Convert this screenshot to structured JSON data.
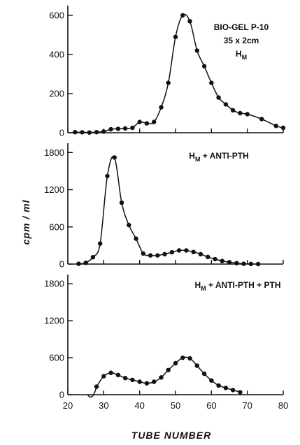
{
  "chart_data": {
    "type": "line",
    "xlabel": "TUBE NUMBER",
    "ylabel": "cpm / ml",
    "xlim": [
      20,
      80
    ],
    "xticks": [
      "20",
      "30",
      "40",
      "50",
      "60",
      "70",
      "80"
    ],
    "grid": false,
    "panels": [
      {
        "annotation_lines": [
          {
            "text": "BIO-GEL P-10",
            "sub": ""
          },
          {
            "text": "35 x 2cm",
            "sub": ""
          },
          {
            "text": "H",
            "sub": "M"
          }
        ],
        "ylim": [
          0,
          650
        ],
        "yticks": [
          "0",
          "200",
          "400",
          "600"
        ],
        "points": [
          [
            22,
            3
          ],
          [
            24,
            2
          ],
          [
            26,
            1
          ],
          [
            28,
            3
          ],
          [
            30,
            6
          ],
          [
            32,
            18
          ],
          [
            34,
            20
          ],
          [
            36,
            22
          ],
          [
            38,
            25
          ],
          [
            40,
            55
          ],
          [
            42,
            48
          ],
          [
            44,
            55
          ],
          [
            46,
            130
          ],
          [
            48,
            255
          ],
          [
            50,
            490
          ],
          [
            52,
            600
          ],
          [
            54,
            570
          ],
          [
            56,
            420
          ],
          [
            58,
            340
          ],
          [
            60,
            255
          ],
          [
            62,
            180
          ],
          [
            64,
            145
          ],
          [
            66,
            115
          ],
          [
            68,
            100
          ],
          [
            70,
            95
          ],
          [
            74,
            70
          ],
          [
            78,
            35
          ],
          [
            80,
            25
          ]
        ]
      },
      {
        "annotation_lines": [
          {
            "text": "H",
            "sub": "M",
            "suffix": " + ANTI-PTH"
          }
        ],
        "ylim": [
          0,
          1950
        ],
        "yticks": [
          "0",
          "600",
          "1200",
          "1800"
        ],
        "points": [
          [
            23,
            5
          ],
          [
            25,
            20
          ],
          [
            27,
            110
          ],
          [
            29,
            330
          ],
          [
            31,
            1420
          ],
          [
            33,
            1720
          ],
          [
            35,
            990
          ],
          [
            37,
            630
          ],
          [
            39,
            410
          ],
          [
            41,
            170
          ],
          [
            43,
            140
          ],
          [
            45,
            140
          ],
          [
            47,
            160
          ],
          [
            49,
            190
          ],
          [
            51,
            220
          ],
          [
            53,
            220
          ],
          [
            55,
            195
          ],
          [
            57,
            160
          ],
          [
            59,
            115
          ],
          [
            61,
            80
          ],
          [
            63,
            50
          ],
          [
            65,
            30
          ],
          [
            67,
            15
          ],
          [
            69,
            5
          ],
          [
            71,
            2
          ],
          [
            73,
            0
          ]
        ]
      },
      {
        "annotation_lines": [
          {
            "text": "H",
            "sub": "M",
            "suffix": " + ANTI-PTH + PTH"
          }
        ],
        "ylim": [
          0,
          1950
        ],
        "yticks": [
          "0",
          "600",
          "1200",
          "1800"
        ],
        "points": [
          [
            28,
            130
          ],
          [
            30,
            300
          ],
          [
            32,
            355
          ],
          [
            34,
            320
          ],
          [
            36,
            270
          ],
          [
            38,
            240
          ],
          [
            40,
            210
          ],
          [
            42,
            185
          ],
          [
            44,
            210
          ],
          [
            46,
            280
          ],
          [
            48,
            400
          ],
          [
            50,
            510
          ],
          [
            52,
            600
          ],
          [
            54,
            590
          ],
          [
            56,
            470
          ],
          [
            58,
            340
          ],
          [
            60,
            230
          ],
          [
            62,
            150
          ],
          [
            64,
            110
          ],
          [
            66,
            75
          ],
          [
            68,
            40
          ]
        ]
      }
    ]
  }
}
